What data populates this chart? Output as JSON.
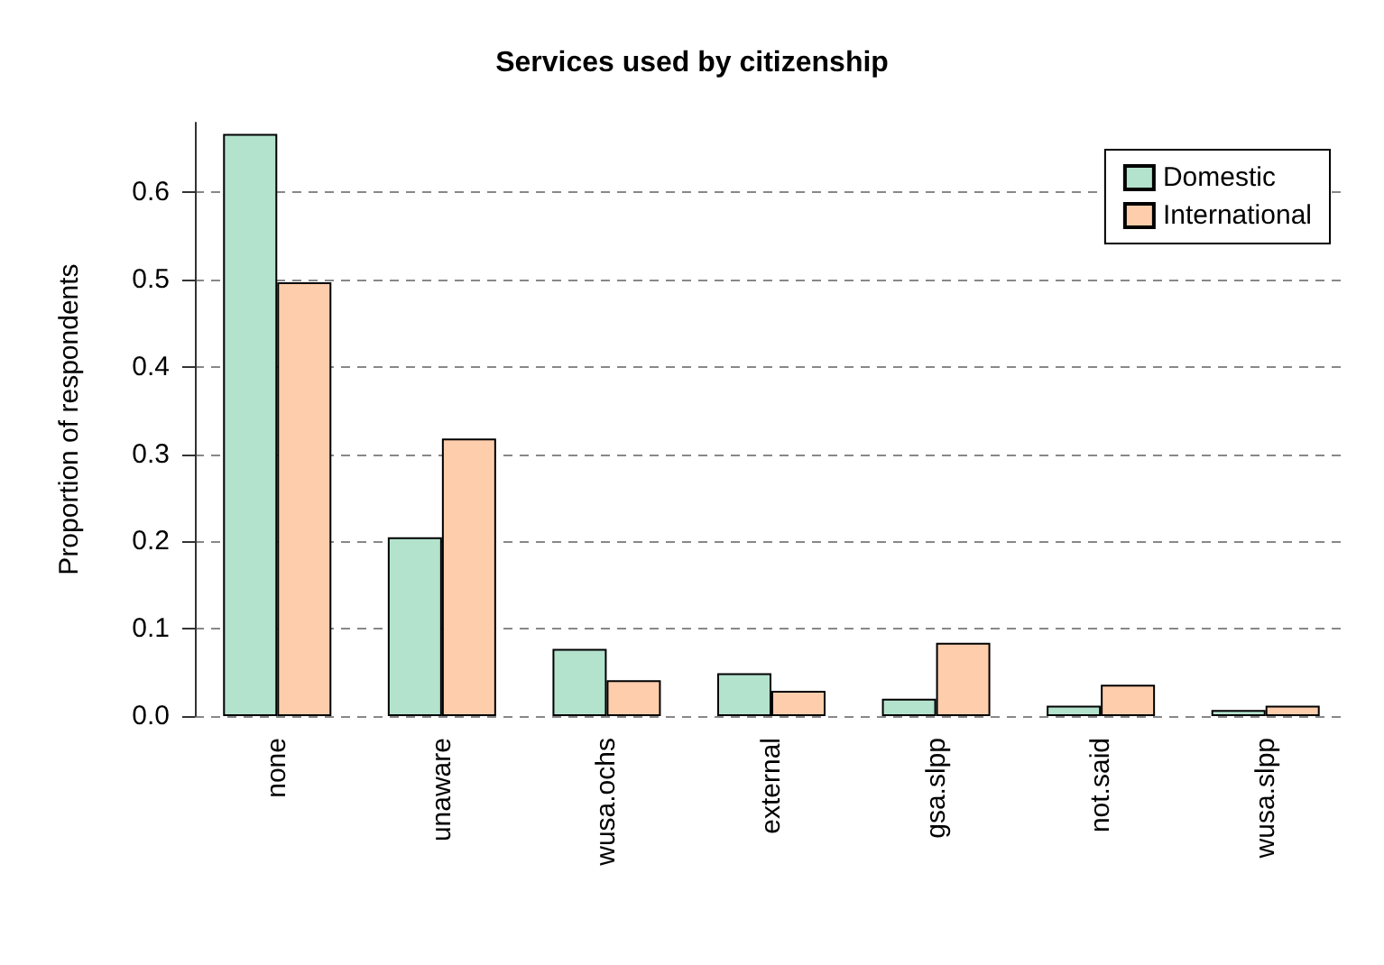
{
  "chart_data": {
    "type": "bar",
    "title": "Services used by citizenship",
    "ylabel": "Proportion of respondents",
    "categories": [
      "none",
      "unaware",
      "wusa.ochs",
      "external",
      "gsa.slpp",
      "not.said",
      "wusa.slpp"
    ],
    "series": [
      {
        "name": "Domestic",
        "color": "#b3e2cd",
        "values": [
          0.667,
          0.205,
          0.077,
          0.049,
          0.02,
          0.012,
          0.007
        ]
      },
      {
        "name": "International",
        "color": "#fdcdac",
        "values": [
          0.497,
          0.318,
          0.041,
          0.029,
          0.084,
          0.036,
          0.012
        ]
      }
    ],
    "ylim": [
      0,
      0.68
    ],
    "yticks": [
      {
        "value": 0,
        "label": "0.0"
      },
      0.1,
      0.2,
      0.3,
      0.4,
      0.5,
      0.6
    ],
    "grid": "y",
    "legend": "top right"
  }
}
